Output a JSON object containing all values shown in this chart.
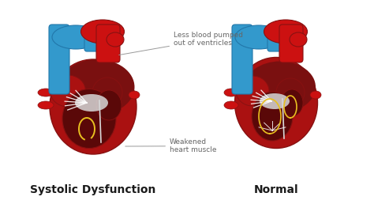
{
  "label_left": "Systolic Dysfunction",
  "label_right": "Normal",
  "annotation_top": "Less blood pumped\nout of ventricles",
  "annotation_bottom": "Weakened\nheart muscle",
  "bg_color": "#ffffff",
  "text_color": "#1a1a1a",
  "annotation_color": "#666666",
  "label_fontsize": 10,
  "annotation_fontsize": 6.5,
  "heart_colors": {
    "outer_red": "#cc1111",
    "outer_red2": "#aa1111",
    "dark_red": "#7a1010",
    "darker_red": "#5a0808",
    "blue": "#3399cc",
    "blue_dark": "#2277aa",
    "white": "#f0f0f0",
    "white2": "#d8d8d8",
    "yellow": "#e8c020",
    "yellow2": "#f0d040",
    "highlight": "#dd3333",
    "shadow": "#881111"
  }
}
